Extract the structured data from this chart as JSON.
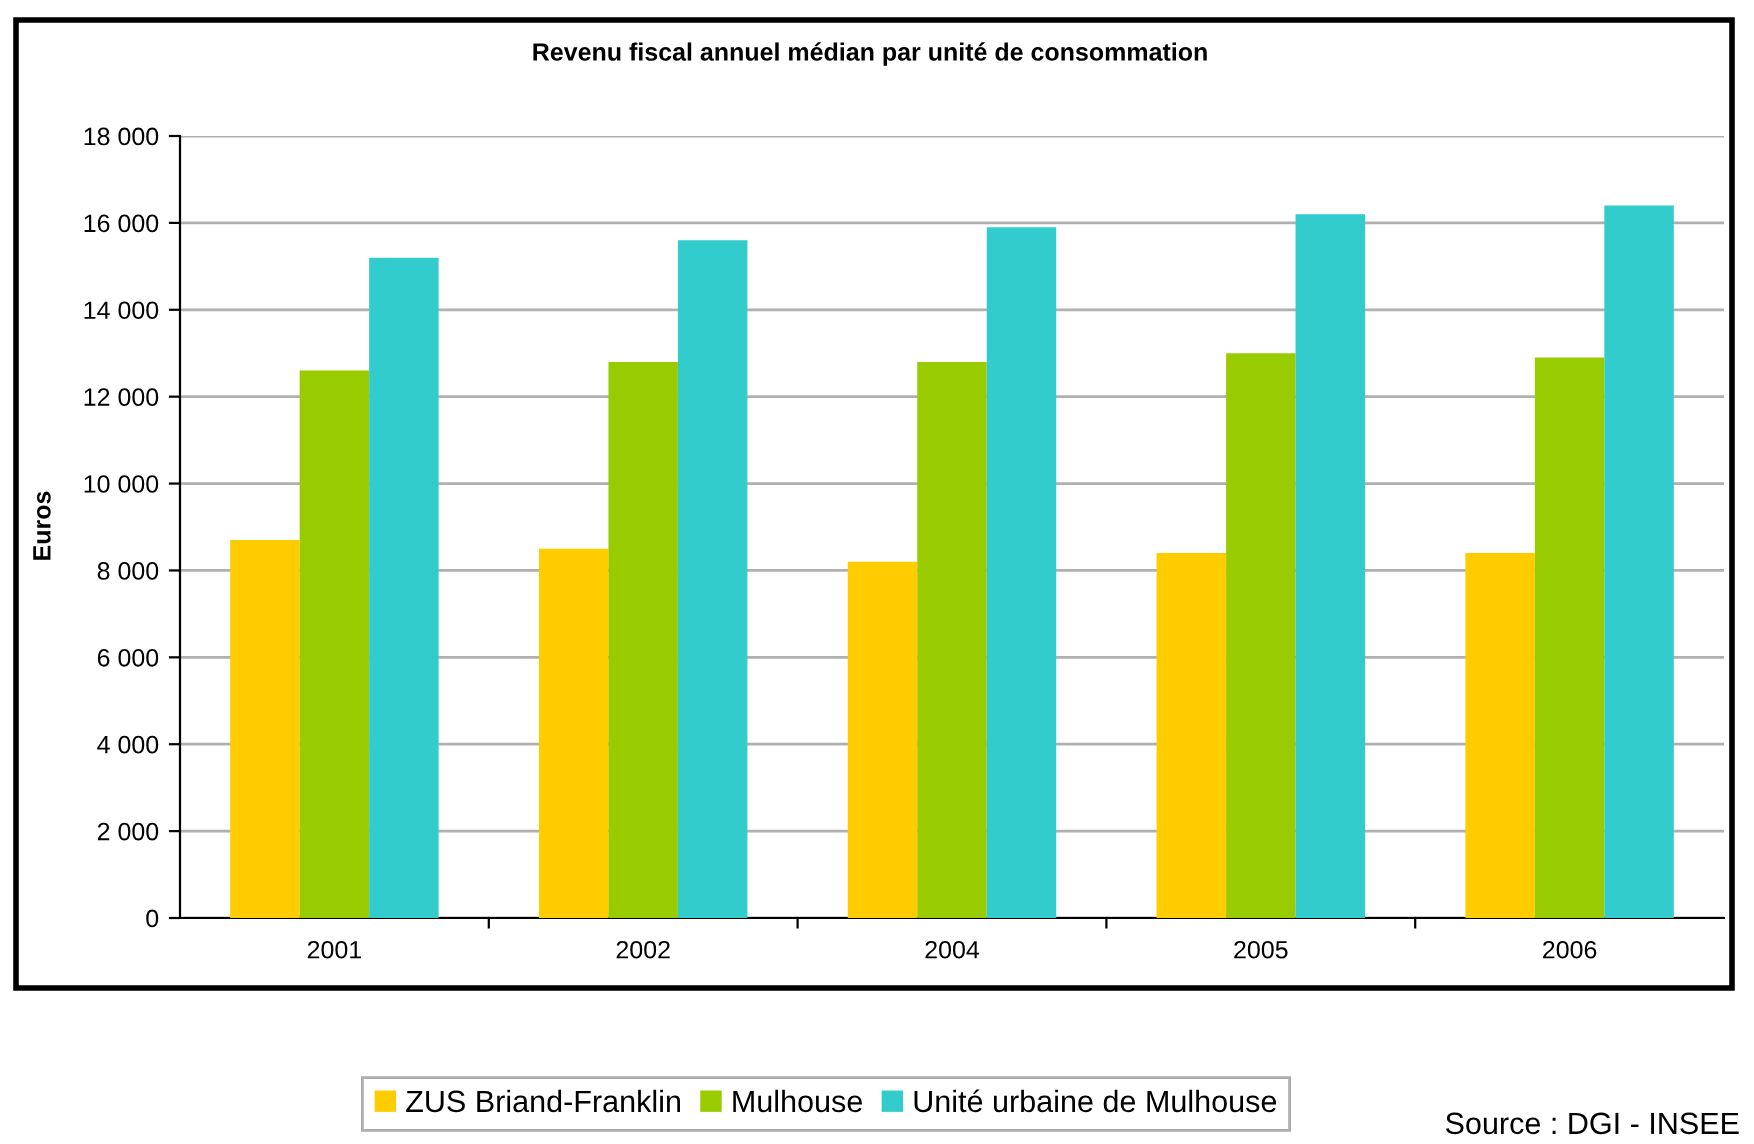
{
  "chart_data": {
    "type": "bar",
    "title": "Revenu fiscal annuel médian par unité de consommation",
    "ylabel": "Euros",
    "categories": [
      "2001",
      "2002",
      "2004",
      "2005",
      "2006"
    ],
    "series": [
      {
        "name": "ZUS Briand-Franklin",
        "color": "#ffcc00",
        "values": [
          8700,
          8500,
          8200,
          8400,
          8400
        ]
      },
      {
        "name": "Mulhouse",
        "color": "#99cc00",
        "values": [
          12600,
          12800,
          12800,
          13000,
          12900
        ]
      },
      {
        "name": "Unité urbaine de Mulhouse",
        "color": "#33cccc",
        "values": [
          15200,
          15600,
          15900,
          16200,
          16400
        ]
      }
    ],
    "ylim": [
      0,
      18000
    ],
    "yticks": [
      {
        "value": 0,
        "label": "0"
      },
      {
        "value": 2000,
        "label": "2 000"
      },
      {
        "value": 4000,
        "label": "4 000"
      },
      {
        "value": 6000,
        "label": "6 000"
      },
      {
        "value": 8000,
        "label": "8 000"
      },
      {
        "value": 10000,
        "label": "10 000"
      },
      {
        "value": 12000,
        "label": "12 000"
      },
      {
        "value": 14000,
        "label": "14 000"
      },
      {
        "value": 16000,
        "label": "16 000"
      },
      {
        "value": 18000,
        "label": "18 000"
      }
    ],
    "grid": "y",
    "legend": "bottom",
    "annotations": [
      "Source : DGI - INSEE"
    ]
  }
}
